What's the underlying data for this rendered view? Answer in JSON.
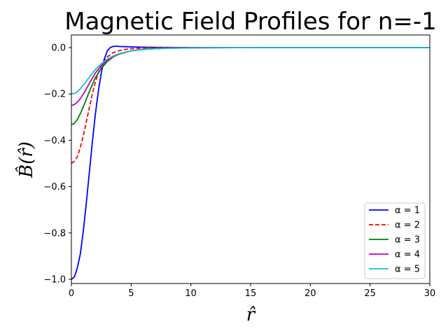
{
  "chart_data": {
    "type": "line",
    "title": "Magnetic Field Profiles for n=-1",
    "xlabel": "r̂",
    "ylabel": "B̂(r̂)",
    "xlim": [
      0,
      30
    ],
    "ylim": [
      -1.0,
      0.0
    ],
    "xticks": [
      "0",
      "5",
      "10",
      "15",
      "20",
      "25",
      "30"
    ],
    "yticks": [
      "0.0",
      "−0.2",
      "−0.4",
      "−0.6",
      "−0.8",
      "−1.0"
    ],
    "grid": false,
    "legend_position": "lower-right",
    "series": [
      {
        "name": "α = 1",
        "color": "#0000ff",
        "dash": "solid",
        "x": [
          0,
          0.25,
          0.5,
          0.75,
          1,
          1.25,
          1.5,
          1.75,
          2,
          2.25,
          2.5,
          2.75,
          3,
          3.25,
          3.5,
          3.75,
          4,
          4.5,
          5,
          6,
          7,
          8,
          10,
          12,
          15,
          20
        ],
        "y": [
          -1.0,
          -0.99,
          -0.95,
          -0.89,
          -0.79,
          -0.67,
          -0.54,
          -0.41,
          -0.29,
          -0.19,
          -0.11,
          -0.05,
          -0.015,
          0.0,
          0.005,
          0.006,
          0.005,
          0.004,
          0.003,
          0.002,
          0.001,
          0.0005,
          0.0002,
          0.0,
          0.0,
          0.0
        ]
      },
      {
        "name": "α = 2",
        "color": "#ff0000",
        "dash": "dashed",
        "x": [
          0,
          0.25,
          0.5,
          0.75,
          1,
          1.25,
          1.5,
          1.75,
          2,
          2.25,
          2.5,
          3,
          3.5,
          4,
          4.5,
          5,
          6,
          7,
          8,
          10,
          12,
          15,
          20
        ],
        "y": [
          -0.5,
          -0.49,
          -0.47,
          -0.43,
          -0.38,
          -0.32,
          -0.26,
          -0.2,
          -0.15,
          -0.11,
          -0.08,
          -0.04,
          -0.022,
          -0.013,
          -0.008,
          -0.005,
          -0.002,
          -0.001,
          -0.0005,
          0.0,
          0.0,
          0.0,
          0.0
        ]
      },
      {
        "name": "α = 3",
        "color": "#008000",
        "dash": "solid",
        "x": [
          0,
          0.25,
          0.5,
          0.75,
          1,
          1.5,
          2,
          2.5,
          3,
          3.5,
          4,
          5,
          6,
          7,
          8,
          10,
          12,
          15,
          20,
          25,
          30
        ],
        "y": [
          -0.333,
          -0.327,
          -0.31,
          -0.285,
          -0.255,
          -0.19,
          -0.13,
          -0.09,
          -0.06,
          -0.04,
          -0.028,
          -0.014,
          -0.007,
          -0.004,
          -0.002,
          -0.0008,
          -0.0003,
          0.0,
          0.0,
          0.0,
          0.0
        ]
      },
      {
        "name": "α = 4",
        "color": "#bf00bf",
        "dash": "solid",
        "x": [
          0,
          0.25,
          0.5,
          0.75,
          1,
          1.5,
          2,
          2.5,
          3,
          3.5,
          4,
          5,
          6,
          7,
          8,
          10,
          12,
          15,
          20,
          25,
          30
        ],
        "y": [
          -0.25,
          -0.246,
          -0.235,
          -0.22,
          -0.2,
          -0.155,
          -0.11,
          -0.078,
          -0.055,
          -0.038,
          -0.027,
          -0.014,
          -0.008,
          -0.005,
          -0.003,
          -0.001,
          -0.0005,
          0.0,
          0.0,
          0.0,
          0.0
        ]
      },
      {
        "name": "α = 5",
        "color": "#17becf",
        "dash": "solid",
        "x": [
          0,
          0.25,
          0.5,
          0.75,
          1,
          1.5,
          2,
          2.5,
          3,
          3.5,
          4,
          5,
          6,
          7,
          8,
          10,
          12,
          15,
          20,
          25,
          30
        ],
        "y": [
          -0.2,
          -0.198,
          -0.19,
          -0.178,
          -0.162,
          -0.128,
          -0.095,
          -0.07,
          -0.05,
          -0.036,
          -0.026,
          -0.014,
          -0.008,
          -0.005,
          -0.003,
          -0.0012,
          -0.0005,
          0.0,
          0.0,
          0.0,
          0.0
        ]
      }
    ]
  }
}
